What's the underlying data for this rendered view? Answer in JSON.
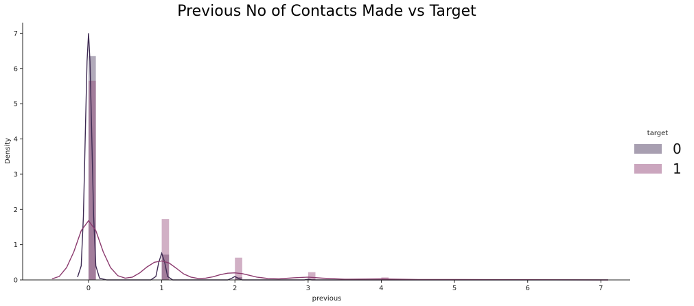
{
  "chart_data": {
    "type": "bar",
    "title": "Previous No of Contacts Made vs Target",
    "xlabel": "previous",
    "ylabel": "Density",
    "xlim": [
      -0.9,
      7.4
    ],
    "ylim": [
      0,
      7.3
    ],
    "xticks": [
      "0",
      "1",
      "2",
      "3",
      "4",
      "5",
      "6",
      "7"
    ],
    "yticks": [
      "0",
      "1",
      "2",
      "3",
      "4",
      "5",
      "6",
      "7"
    ],
    "legend": {
      "title": "target",
      "placement": "right"
    },
    "series": [
      {
        "name": "0",
        "color": "#3d2a52",
        "bar_alpha": 0.4,
        "bins": [
          {
            "x": 0,
            "density": 6.35
          },
          {
            "x": 1,
            "density": 0.72
          },
          {
            "x": 2,
            "density": 0.08
          },
          {
            "x": 3,
            "density": 0.02
          }
        ],
        "kde": [
          [
            -0.15,
            0.08
          ],
          [
            -0.1,
            0.4
          ],
          [
            -0.07,
            1.8
          ],
          [
            -0.04,
            4.5
          ],
          [
            -0.02,
            6.2
          ],
          [
            0,
            7.0
          ],
          [
            0.02,
            6.2
          ],
          [
            0.04,
            4.5
          ],
          [
            0.07,
            1.8
          ],
          [
            0.1,
            0.4
          ],
          [
            0.15,
            0.05
          ],
          [
            0.25,
            0
          ],
          [
            0.85,
            0
          ],
          [
            0.92,
            0.1
          ],
          [
            0.96,
            0.5
          ],
          [
            1,
            0.76
          ],
          [
            1.04,
            0.5
          ],
          [
            1.08,
            0.1
          ],
          [
            1.15,
            0
          ],
          [
            1.9,
            0
          ],
          [
            1.96,
            0.05
          ],
          [
            2,
            0.1
          ],
          [
            2.04,
            0.05
          ],
          [
            2.1,
            0
          ],
          [
            2.95,
            0
          ],
          [
            3,
            0.02
          ],
          [
            3.05,
            0
          ],
          [
            7.1,
            0
          ]
        ]
      },
      {
        "name": "1",
        "color": "#8b3a6e",
        "bar_alpha": 0.4,
        "bins": [
          {
            "x": 0,
            "density": 5.65
          },
          {
            "x": 1,
            "density": 1.73
          },
          {
            "x": 2,
            "density": 0.63
          },
          {
            "x": 3,
            "density": 0.22
          },
          {
            "x": 4,
            "density": 0.07
          }
        ],
        "kde": [
          [
            -0.5,
            0.03
          ],
          [
            -0.4,
            0.1
          ],
          [
            -0.3,
            0.35
          ],
          [
            -0.2,
            0.8
          ],
          [
            -0.1,
            1.4
          ],
          [
            0,
            1.68
          ],
          [
            0.1,
            1.4
          ],
          [
            0.2,
            0.8
          ],
          [
            0.3,
            0.35
          ],
          [
            0.4,
            0.12
          ],
          [
            0.5,
            0.05
          ],
          [
            0.6,
            0.08
          ],
          [
            0.7,
            0.2
          ],
          [
            0.8,
            0.37
          ],
          [
            0.9,
            0.5
          ],
          [
            1,
            0.54
          ],
          [
            1.1,
            0.48
          ],
          [
            1.2,
            0.33
          ],
          [
            1.3,
            0.17
          ],
          [
            1.4,
            0.08
          ],
          [
            1.5,
            0.04
          ],
          [
            1.6,
            0.05
          ],
          [
            1.7,
            0.09
          ],
          [
            1.8,
            0.15
          ],
          [
            1.9,
            0.19
          ],
          [
            2,
            0.2
          ],
          [
            2.1,
            0.18
          ],
          [
            2.2,
            0.13
          ],
          [
            2.3,
            0.08
          ],
          [
            2.45,
            0.04
          ],
          [
            2.6,
            0.03
          ],
          [
            2.8,
            0.06
          ],
          [
            3,
            0.08
          ],
          [
            3.2,
            0.05
          ],
          [
            3.5,
            0.02
          ],
          [
            4,
            0.03
          ],
          [
            4.5,
            0.01
          ],
          [
            5,
            0.01
          ],
          [
            6,
            0.005
          ],
          [
            7.1,
            0
          ]
        ]
      }
    ]
  }
}
